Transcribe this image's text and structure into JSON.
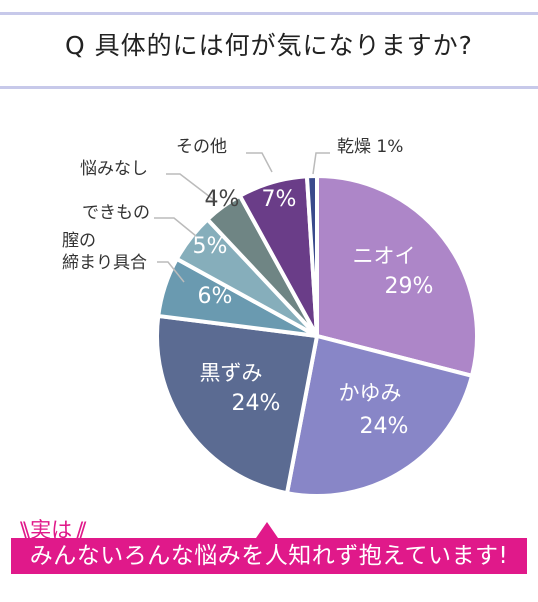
{
  "title": "Q 具体的には何が気になりますか?",
  "chart_data": {
    "type": "pie",
    "title": "Q 具体的には何が気になりますか?",
    "slices": [
      {
        "label": "ニオイ",
        "value": 29,
        "value_label": "29%",
        "color": "#ad86c8"
      },
      {
        "label": "かゆみ",
        "value": 24,
        "value_label": "24%",
        "color": "#8886c7"
      },
      {
        "label": "黒ずみ",
        "value": 24,
        "value_label": "24%",
        "color": "#5b6b92"
      },
      {
        "label": "膣の締まり具合",
        "value": 6,
        "value_label": "6%",
        "color": "#6a9ab0"
      },
      {
        "label": "できもの",
        "value": 5,
        "value_label": "5%",
        "color": "#86aebb"
      },
      {
        "label": "悩みなし",
        "value": 4,
        "value_label": "4%",
        "color": "#6f8584"
      },
      {
        "label": "その他",
        "value": 7,
        "value_label": "7%",
        "color": "#6a3d88"
      },
      {
        "label": "乾燥",
        "value": 1,
        "value_label": "1%",
        "color": "#3a4a8c"
      }
    ]
  },
  "callout": {
    "text": "実は"
  },
  "banner": {
    "text": "みんないろんな悩みを人知れず抱えています!"
  }
}
